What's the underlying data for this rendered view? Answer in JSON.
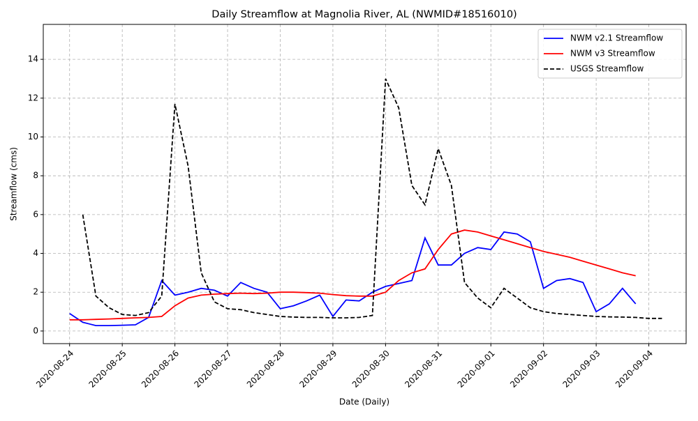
{
  "chart_data": {
    "type": "line",
    "title": "Daily Streamflow at Magnolia River, AL (NWMID#18516010)",
    "x_label": "Date (Daily)",
    "y_label": "Streamflow (cms)",
    "x": [
      "2020-08-24T00:00",
      "2020-08-24T06:00",
      "2020-08-24T12:00",
      "2020-08-24T18:00",
      "2020-08-25T00:00",
      "2020-08-25T06:00",
      "2020-08-25T12:00",
      "2020-08-25T18:00",
      "2020-08-26T00:00",
      "2020-08-26T06:00",
      "2020-08-26T12:00",
      "2020-08-26T18:00",
      "2020-08-27T00:00",
      "2020-08-27T06:00",
      "2020-08-27T12:00",
      "2020-08-27T18:00",
      "2020-08-28T00:00",
      "2020-08-28T06:00",
      "2020-08-28T12:00",
      "2020-08-28T18:00",
      "2020-08-29T00:00",
      "2020-08-29T06:00",
      "2020-08-29T12:00",
      "2020-08-29T18:00",
      "2020-08-30T00:00",
      "2020-08-30T06:00",
      "2020-08-30T12:00",
      "2020-08-30T18:00",
      "2020-08-31T00:00",
      "2020-08-31T06:00",
      "2020-08-31T12:00",
      "2020-08-31T18:00",
      "2020-09-01T00:00",
      "2020-09-01T06:00",
      "2020-09-01T12:00",
      "2020-09-01T18:00",
      "2020-09-02T00:00",
      "2020-09-02T06:00",
      "2020-09-02T12:00",
      "2020-09-02T18:00",
      "2020-09-03T00:00",
      "2020-09-03T06:00",
      "2020-09-03T12:00",
      "2020-09-03T18:00",
      "2020-09-04T00:00",
      "2020-09-04T06:00"
    ],
    "series": [
      {
        "name": "NWM v2.1 Streamflow",
        "color": "#0000ff",
        "linestyle": "solid",
        "values": [
          0.9,
          0.45,
          0.28,
          0.28,
          0.3,
          0.32,
          0.7,
          2.6,
          1.85,
          2.0,
          2.2,
          2.1,
          1.8,
          2.5,
          2.2,
          2.0,
          1.15,
          1.3,
          1.55,
          1.85,
          0.75,
          1.6,
          1.55,
          2.0,
          2.3,
          2.45,
          2.6,
          4.8,
          3.4,
          3.4,
          4.0,
          4.3,
          4.2,
          5.1,
          5.0,
          4.6,
          2.2,
          2.6,
          2.7,
          2.5,
          1.0,
          1.4,
          2.2,
          1.4,
          null,
          null
        ]
      },
      {
        "name": "NWM v3 Streamflow",
        "color": "#ff0000",
        "linestyle": "solid",
        "values": [
          0.58,
          0.58,
          0.6,
          0.62,
          0.65,
          0.68,
          0.7,
          0.75,
          1.3,
          1.7,
          1.85,
          1.9,
          1.93,
          1.95,
          1.93,
          1.95,
          2.0,
          2.0,
          1.98,
          1.95,
          1.88,
          1.82,
          1.8,
          1.8,
          2.0,
          2.6,
          3.0,
          3.2,
          4.2,
          5.0,
          5.2,
          5.1,
          4.9,
          4.7,
          4.5,
          4.3,
          4.1,
          3.95,
          3.8,
          3.6,
          3.4,
          3.2,
          3.0,
          2.85,
          null,
          null
        ]
      },
      {
        "name": "USGS Streamflow",
        "color": "#000000",
        "linestyle": "dashed",
        "values": [
          null,
          6.0,
          1.8,
          1.2,
          0.85,
          0.8,
          0.95,
          1.8,
          11.7,
          8.5,
          3.0,
          1.5,
          1.15,
          1.1,
          0.95,
          0.85,
          0.75,
          0.72,
          0.7,
          0.7,
          0.68,
          0.68,
          0.7,
          0.8,
          13.0,
          11.5,
          7.5,
          6.5,
          9.4,
          7.5,
          2.5,
          1.7,
          1.2,
          2.2,
          1.7,
          1.2,
          1.0,
          0.9,
          0.85,
          0.8,
          0.75,
          0.73,
          0.72,
          0.7,
          0.65,
          0.65
        ]
      }
    ],
    "xlim": [
      "2020-08-23T12:00",
      "2020-09-04T17:00"
    ],
    "xticks": [
      "2020-08-24",
      "2020-08-25",
      "2020-08-26",
      "2020-08-27",
      "2020-08-28",
      "2020-08-29",
      "2020-08-30",
      "2020-08-31",
      "2020-09-01",
      "2020-09-02",
      "2020-09-03",
      "2020-09-04"
    ],
    "ylim": [
      -0.65,
      15.8
    ],
    "yticks": [
      0,
      2,
      4,
      6,
      8,
      10,
      12,
      14
    ],
    "grid": true,
    "legend": "upper right"
  }
}
